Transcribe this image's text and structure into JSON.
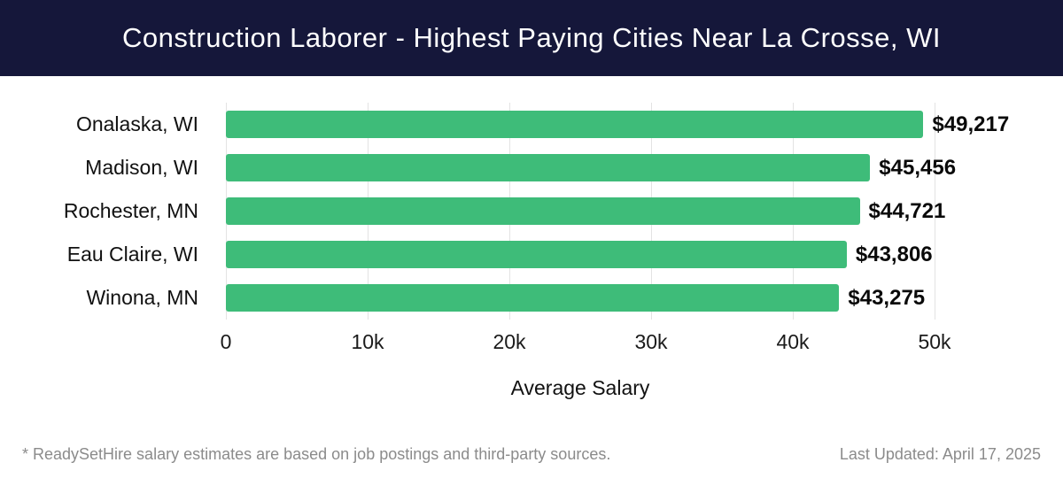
{
  "header": {
    "title": "Construction Laborer - Highest Paying Cities Near La Crosse, WI",
    "background_color": "#15173a",
    "text_color": "#ffffff"
  },
  "chart_data": {
    "type": "bar",
    "orientation": "horizontal",
    "title": "Construction Laborer - Highest Paying Cities Near La Crosse, WI",
    "categories": [
      "Onalaska, WI",
      "Madison, WI",
      "Rochester, MN",
      "Eau Claire, WI",
      "Winona, MN"
    ],
    "values": [
      49217,
      45456,
      44721,
      43806,
      43275
    ],
    "value_labels": [
      "$49,217",
      "$45,456",
      "$44,721",
      "$43,806",
      "$43,275"
    ],
    "xlabel": "Average Salary",
    "x_ticks": [
      "0",
      "10k",
      "20k",
      "30k",
      "40k",
      "50k"
    ],
    "x_tick_values": [
      0,
      10000,
      20000,
      30000,
      40000,
      50000
    ],
    "xlim": [
      0,
      50000
    ],
    "grid": "vertical-light-gridlines",
    "legend": "none",
    "bar_color": "#3ebc79",
    "value_label_color": "#0a0a0a",
    "gridline_color": "#e3e3e3"
  },
  "footer": {
    "disclaimer": "* ReadySetHire salary estimates are based on job postings and third-party sources.",
    "last_updated": "Last Updated: April 17, 2025"
  }
}
